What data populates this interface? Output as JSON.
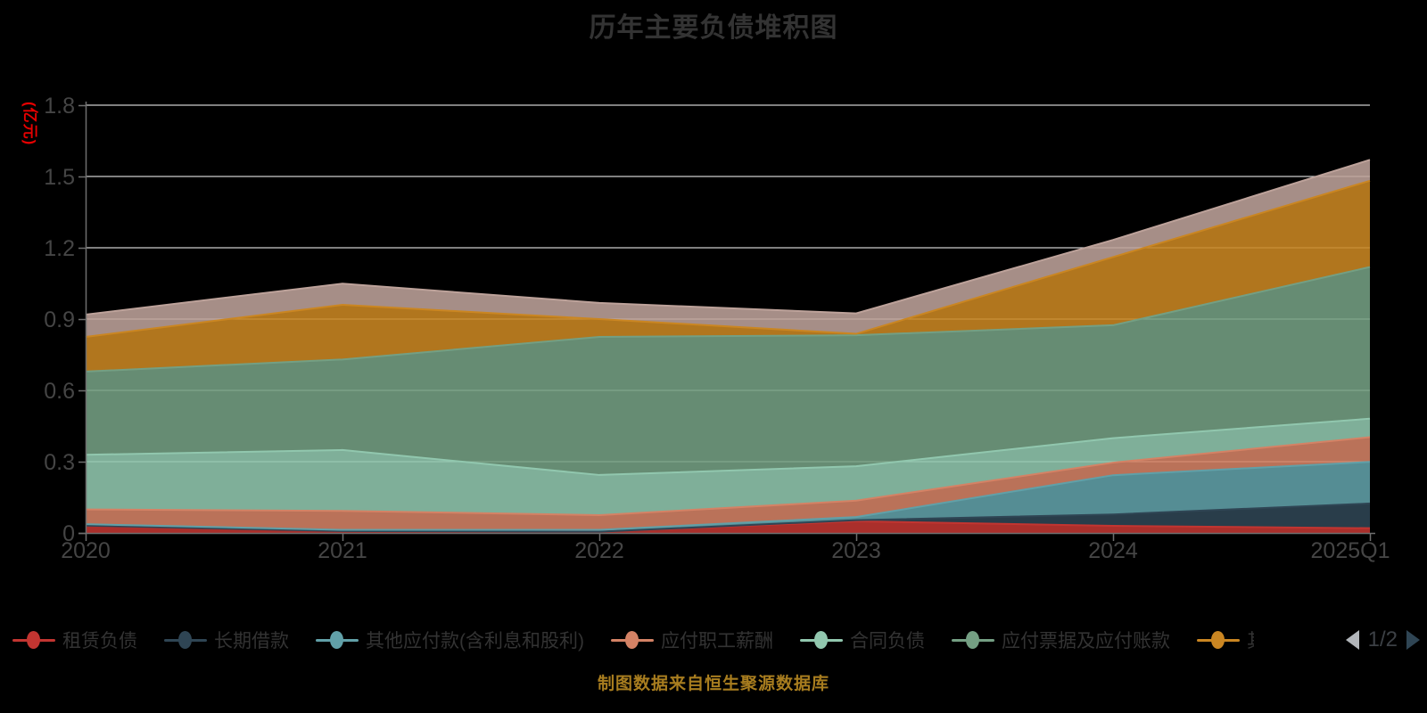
{
  "title": "历年主要负债堆积图",
  "y_axis_name": "(亿元)",
  "caption": "制图数据来自恒生聚源数据库",
  "legend": {
    "items": [
      {
        "label": "租赁负债",
        "color": "#c23531",
        "clipped": false
      },
      {
        "label": "长期借款",
        "color": "#2f4554",
        "clipped": false
      },
      {
        "label": "其他应付款(含利息和股利)",
        "color": "#61a0a8",
        "clipped": false
      },
      {
        "label": "应付职工薪酬",
        "color": "#d48265",
        "clipped": false
      },
      {
        "label": "合同负债",
        "color": "#91c7ae",
        "clipped": false
      },
      {
        "label": "应付票据及应付账款",
        "color": "#749f83",
        "clipped": false
      },
      {
        "label": "其",
        "color": "#ca8622",
        "clipped": true
      }
    ],
    "pager": {
      "label": "1/2",
      "prev_enabled": false,
      "next_enabled": true
    }
  },
  "chart_data": {
    "type": "area",
    "stacked": true,
    "title": "历年主要负债堆积图",
    "unit": "亿元",
    "categories": [
      "2020",
      "2021",
      "2022",
      "2023",
      "2024",
      "2025Q1"
    ],
    "series": [
      {
        "name": "租赁负债",
        "color": "#c23531",
        "values": [
          0.031,
          0.008,
          0.005,
          0.049,
          0.03,
          0.02
        ]
      },
      {
        "name": "长期借款",
        "color": "#2f4554",
        "values": [
          0.0,
          0.0,
          0.0,
          0.005,
          0.048,
          0.104
        ]
      },
      {
        "name": "其他应付款(含利息和股利)",
        "color": "#61a0a8",
        "values": [
          0.006,
          0.005,
          0.008,
          0.013,
          0.165,
          0.175
        ]
      },
      {
        "name": "应付职工薪酬",
        "color": "#d48265",
        "values": [
          0.062,
          0.08,
          0.062,
          0.069,
          0.053,
          0.104
        ]
      },
      {
        "name": "合同负债",
        "color": "#91c7ae",
        "values": [
          0.23,
          0.256,
          0.169,
          0.145,
          0.103,
          0.078
        ]
      },
      {
        "name": "应付票据及应付账款",
        "color": "#749f83",
        "values": [
          0.35,
          0.381,
          0.581,
          0.551,
          0.475,
          0.638
        ]
      },
      {
        "name": "",
        "color": "#ca8622",
        "values": [
          0.146,
          0.23,
          0.075,
          0.006,
          0.287,
          0.363
        ]
      },
      {
        "name": "",
        "color": "#bda29a",
        "values": [
          0.094,
          0.089,
          0.068,
          0.086,
          0.072,
          0.088
        ]
      }
    ],
    "ylim": [
      0,
      1.8
    ],
    "yticks": [
      0,
      0.3,
      0.6,
      0.9,
      1.2,
      1.5,
      1.8
    ],
    "grid": true,
    "legend_position": "bottom",
    "background": "#000000",
    "colors": {
      "grid_line": "#cccccc",
      "axis_line": "#6e6e6e",
      "axis_label": "#454545",
      "title_text": "#333333",
      "axis_name_text": "#e60000",
      "caption_text": "#a87d1f"
    }
  }
}
